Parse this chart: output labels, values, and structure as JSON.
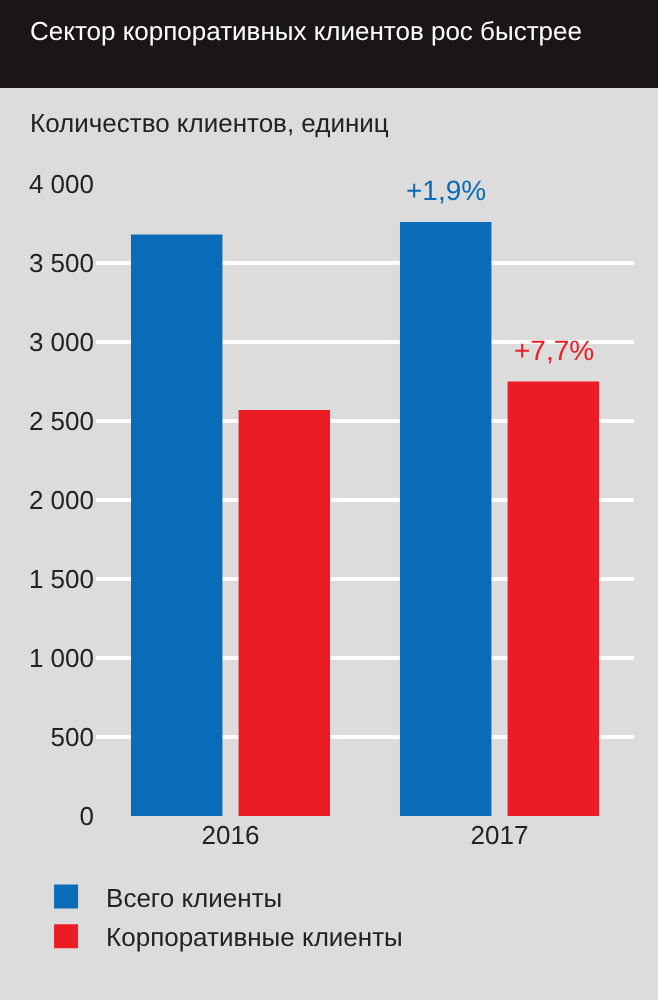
{
  "chart_data": {
    "type": "bar",
    "title": "Сектор корпоративных клиентов рос быстрее",
    "subtitle": "Количество клиентов, единиц",
    "categories": [
      "2016",
      "2017"
    ],
    "series": [
      {
        "name": "Всего клиенты",
        "color": "#0a6cb8",
        "values": [
          3680,
          3760
        ]
      },
      {
        "name": "Корпоративные клиенты",
        "color": "#ec1c24",
        "values": [
          2570,
          2750
        ]
      }
    ],
    "annotations": [
      {
        "text": "+1,9%",
        "x": "2017",
        "y": 3760
      },
      {
        "text": "+7,7%",
        "x": "2017",
        "y": 2750
      }
    ],
    "ylim": [
      0,
      4000
    ],
    "yticks": [
      0,
      500,
      {
        "value": 1000,
        "label": "1 000"
      },
      {
        "value": 1500,
        "label": "1 500"
      },
      {
        "value": 2000,
        "label": "2 000"
      },
      {
        "value": 2500,
        "label": "2 500"
      },
      {
        "value": 3000,
        "label": "3 000"
      },
      {
        "value": 3500,
        "label": "3 500"
      },
      {
        "value": 4000,
        "label": "4 000"
      }
    ],
    "grid": "y",
    "legend": "bottom"
  }
}
